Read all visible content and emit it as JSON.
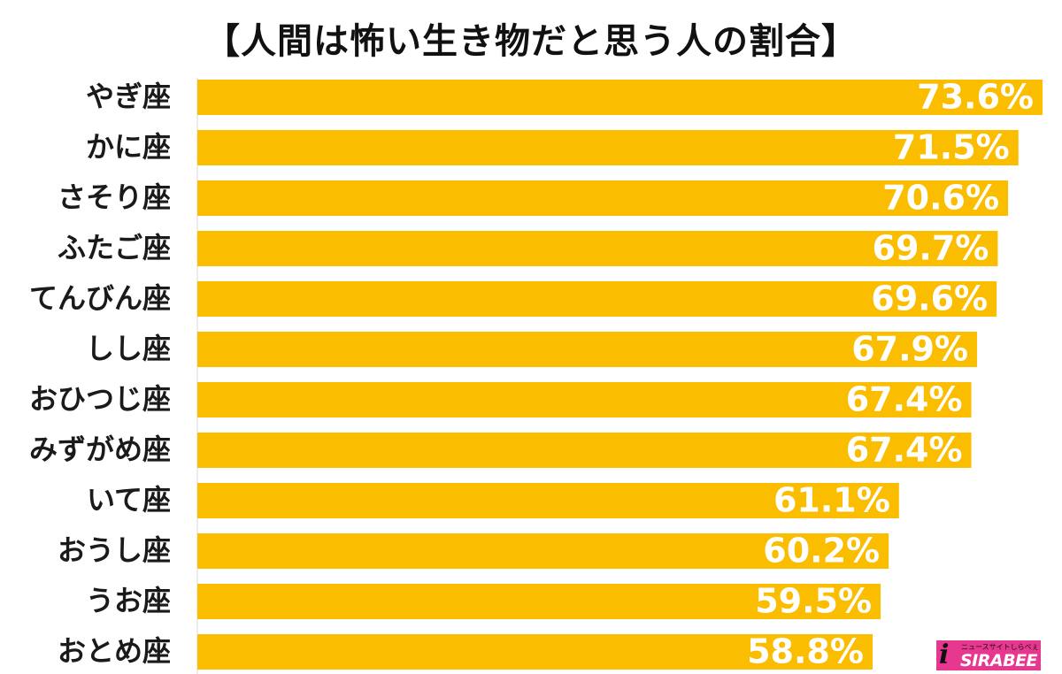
{
  "chart_data": {
    "type": "bar",
    "orientation": "horizontal",
    "title": "【人間は怖い生き物だと思う人の割合】",
    "categories": [
      "やぎ座",
      "かに座",
      "さそり座",
      "ふたご座",
      "てんびん座",
      "しし座",
      "おひつじ座",
      "みずがめ座",
      "いて座",
      "おうし座",
      "うお座",
      "おとめ座"
    ],
    "values": [
      73.6,
      71.5,
      70.6,
      69.7,
      69.6,
      67.9,
      67.4,
      67.4,
      61.1,
      60.2,
      59.5,
      58.8
    ],
    "value_labels": [
      "73.6%",
      "71.5%",
      "70.6%",
      "69.7%",
      "69.6%",
      "67.9%",
      "67.4%",
      "67.4%",
      "61.1%",
      "60.2%",
      "59.5%",
      "58.8%"
    ],
    "xlim": [
      0,
      73.6
    ],
    "bar_color": "#fbbd00",
    "grid": false,
    "legend": "none"
  },
  "logo": {
    "mark": "i",
    "tagline": "ニュースサイトしらべぇ",
    "text": "SIRABEE",
    "background": "#e8378f"
  }
}
